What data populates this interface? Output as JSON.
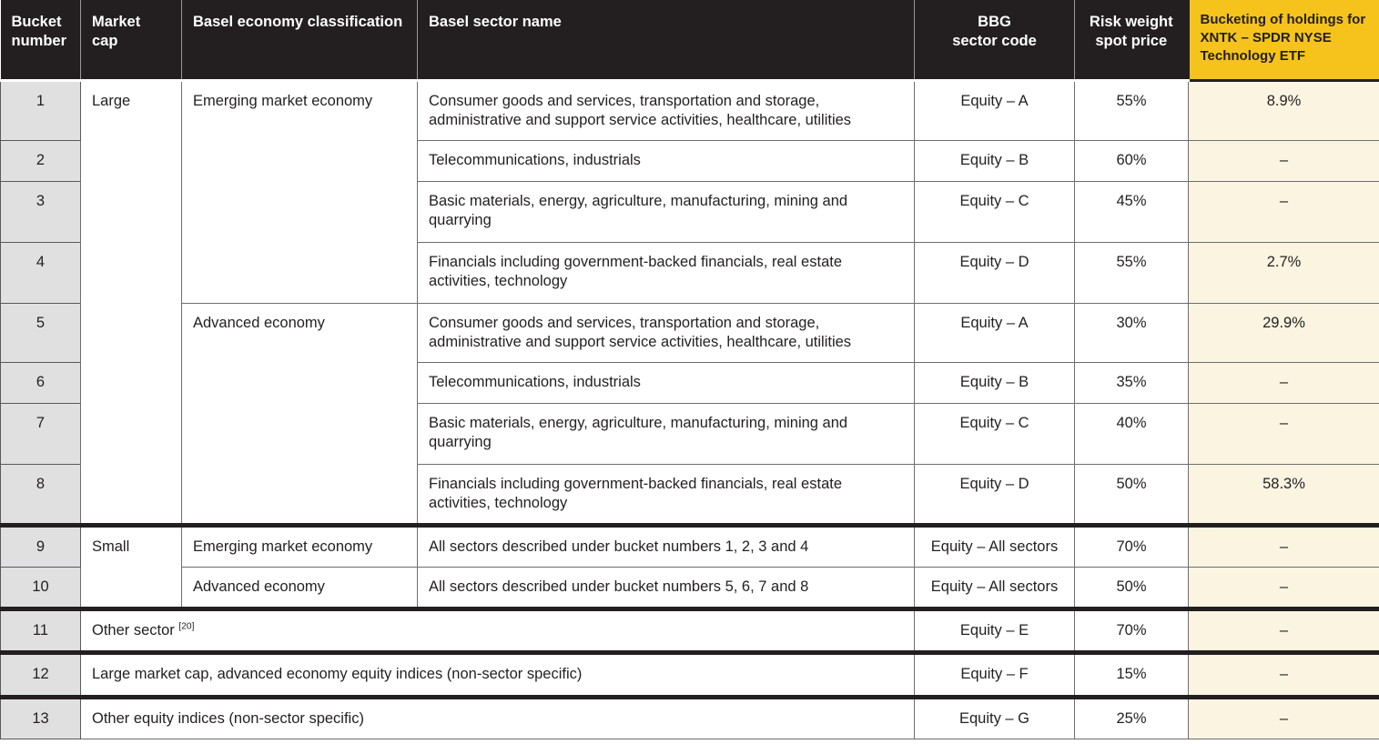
{
  "colors": {
    "header_bg": "#231F20",
    "highlight_yellow": "#F6C31D",
    "highlight_cream": "#FAF4E1",
    "bucket_gray": "#E0E0E1",
    "grid_line": "#6D6E71",
    "thick_line": "#231F20"
  },
  "table": {
    "header": {
      "columns": [
        {
          "id": "bucket",
          "label": "Bucket\nnumber"
        },
        {
          "id": "market_cap",
          "label": "Market cap"
        },
        {
          "id": "economy",
          "label": "Basel economy classification"
        },
        {
          "id": "sector",
          "label": "Basel sector name"
        },
        {
          "id": "bbg",
          "label": "BBG\nsector code"
        },
        {
          "id": "risk_weight",
          "label": "Risk weight\nspot price"
        },
        {
          "id": "bucketing",
          "label": "Bucketing of holdings for XNTK – SPDR NYSE Technology ETF"
        }
      ]
    },
    "rows": [
      {
        "thick_top": false,
        "cells": [
          {
            "col": "bucket",
            "text": "1"
          },
          {
            "col": "market_cap",
            "text": "Large",
            "rowspan": 8
          },
          {
            "col": "economy",
            "text": "Emerging market economy",
            "rowspan": 4
          },
          {
            "col": "sector",
            "text": "Consumer goods and services, transportation and storage, administrative and support service activities, healthcare, utilities"
          },
          {
            "col": "bbg",
            "text": "Equity – A"
          },
          {
            "col": "risk_weight",
            "text": "55%"
          },
          {
            "col": "bucketing",
            "text": "8.9%"
          }
        ]
      },
      {
        "thick_top": false,
        "cells": [
          {
            "col": "bucket",
            "text": "2"
          },
          {
            "col": "sector",
            "text": "Telecommunications, industrials"
          },
          {
            "col": "bbg",
            "text": "Equity – B"
          },
          {
            "col": "risk_weight",
            "text": "60%"
          },
          {
            "col": "bucketing",
            "text": "–"
          }
        ]
      },
      {
        "thick_top": false,
        "cells": [
          {
            "col": "bucket",
            "text": "3"
          },
          {
            "col": "sector",
            "text": "Basic materials, energy, agriculture, manufacturing, mining and quarrying"
          },
          {
            "col": "bbg",
            "text": "Equity – C"
          },
          {
            "col": "risk_weight",
            "text": "45%"
          },
          {
            "col": "bucketing",
            "text": "–"
          }
        ]
      },
      {
        "thick_top": false,
        "cells": [
          {
            "col": "bucket",
            "text": "4"
          },
          {
            "col": "sector",
            "text": "Financials including government-backed financials, real estate activities, technology"
          },
          {
            "col": "bbg",
            "text": "Equity – D"
          },
          {
            "col": "risk_weight",
            "text": "55%"
          },
          {
            "col": "bucketing",
            "text": "2.7%"
          }
        ]
      },
      {
        "thick_top": false,
        "cells": [
          {
            "col": "bucket",
            "text": "5"
          },
          {
            "col": "economy",
            "text": "Advanced economy",
            "rowspan": 4
          },
          {
            "col": "sector",
            "text": "Consumer goods and services, transportation and storage, administrative and support service activities, healthcare, utilities"
          },
          {
            "col": "bbg",
            "text": "Equity – A"
          },
          {
            "col": "risk_weight",
            "text": "30%"
          },
          {
            "col": "bucketing",
            "text": "29.9%"
          }
        ]
      },
      {
        "thick_top": false,
        "cells": [
          {
            "col": "bucket",
            "text": "6"
          },
          {
            "col": "sector",
            "text": "Telecommunications, industrials"
          },
          {
            "col": "bbg",
            "text": "Equity – B"
          },
          {
            "col": "risk_weight",
            "text": "35%"
          },
          {
            "col": "bucketing",
            "text": "–"
          }
        ]
      },
      {
        "thick_top": false,
        "cells": [
          {
            "col": "bucket",
            "text": "7"
          },
          {
            "col": "sector",
            "text": "Basic materials, energy, agriculture, manufacturing, mining and quarrying"
          },
          {
            "col": "bbg",
            "text": "Equity – C"
          },
          {
            "col": "risk_weight",
            "text": "40%"
          },
          {
            "col": "bucketing",
            "text": "–"
          }
        ]
      },
      {
        "thick_top": false,
        "cells": [
          {
            "col": "bucket",
            "text": "8"
          },
          {
            "col": "sector",
            "text": "Financials including government-backed financials, real estate activities, technology"
          },
          {
            "col": "bbg",
            "text": "Equity – D"
          },
          {
            "col": "risk_weight",
            "text": "50%"
          },
          {
            "col": "bucketing",
            "text": "58.3%"
          }
        ]
      },
      {
        "thick_top": true,
        "cells": [
          {
            "col": "bucket",
            "text": "9"
          },
          {
            "col": "market_cap",
            "text": "Small",
            "rowspan": 2
          },
          {
            "col": "economy",
            "text": "Emerging market economy"
          },
          {
            "col": "sector",
            "text": "All sectors described under bucket numbers 1, 2, 3 and 4"
          },
          {
            "col": "bbg",
            "text": "Equity – All sectors"
          },
          {
            "col": "risk_weight",
            "text": "70%"
          },
          {
            "col": "bucketing",
            "text": "–"
          }
        ]
      },
      {
        "thick_top": false,
        "cells": [
          {
            "col": "bucket",
            "text": "10"
          },
          {
            "col": "economy",
            "text": "Advanced economy"
          },
          {
            "col": "sector",
            "text": "All sectors described under bucket numbers 5, 6, 7 and 8"
          },
          {
            "col": "bbg",
            "text": "Equity – All sectors"
          },
          {
            "col": "risk_weight",
            "text": "50%"
          },
          {
            "col": "bucketing",
            "text": "–"
          }
        ]
      },
      {
        "thick_top": true,
        "cells": [
          {
            "col": "bucket",
            "text": "11"
          },
          {
            "col": "desc",
            "text": "Other sector",
            "sup": "[20]",
            "colspan": 3
          },
          {
            "col": "bbg",
            "text": "Equity – E"
          },
          {
            "col": "risk_weight",
            "text": "70%"
          },
          {
            "col": "bucketing",
            "text": "–"
          }
        ]
      },
      {
        "thick_top": true,
        "cells": [
          {
            "col": "bucket",
            "text": "12"
          },
          {
            "col": "desc",
            "text": "Large market cap, advanced economy equity indices (non-sector specific)",
            "colspan": 3
          },
          {
            "col": "bbg",
            "text": "Equity – F"
          },
          {
            "col": "risk_weight",
            "text": "15%"
          },
          {
            "col": "bucketing",
            "text": "–"
          }
        ]
      },
      {
        "thick_top": true,
        "cells": [
          {
            "col": "bucket",
            "text": "13"
          },
          {
            "col": "desc",
            "text": "Other equity indices (non-sector specific)",
            "colspan": 3
          },
          {
            "col": "bbg",
            "text": "Equity – G"
          },
          {
            "col": "risk_weight",
            "text": "25%"
          },
          {
            "col": "bucketing",
            "text": "–"
          }
        ]
      }
    ]
  }
}
